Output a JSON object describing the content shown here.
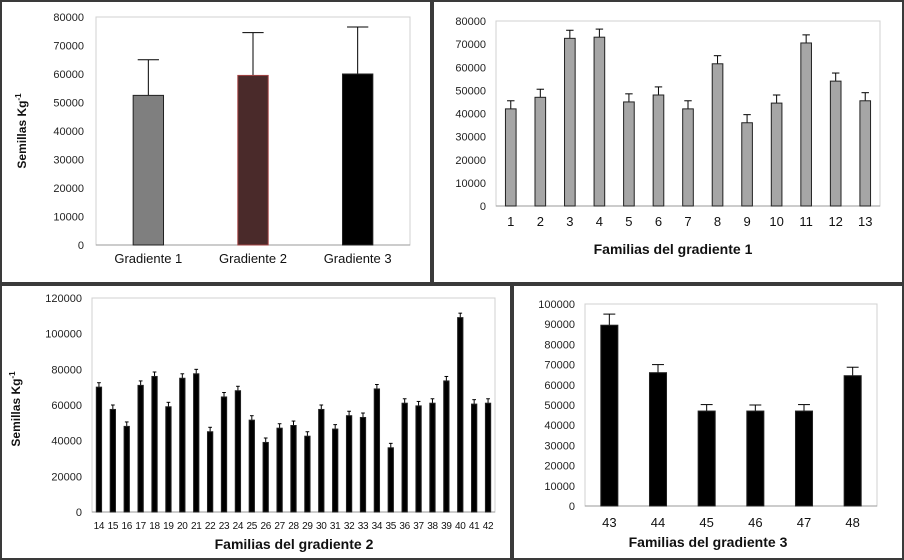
{
  "chart_data": [
    {
      "type": "bar",
      "title": "",
      "xlabel": "",
      "ylabel": "Semillas Kg",
      "ylabel_sup": "-1",
      "ylim": [
        0,
        80000
      ],
      "yticks": [
        0,
        10000,
        20000,
        30000,
        40000,
        50000,
        60000,
        70000,
        80000
      ],
      "categories": [
        "Gradiente 1",
        "Gradiente 2",
        "Gradiente 3"
      ],
      "values": [
        52500,
        59500,
        60000
      ],
      "errors": [
        12500,
        15000,
        16500
      ],
      "bar_colors": [
        "#7f7f7f",
        "#4a2a2a",
        "#000000"
      ],
      "grid": false
    },
    {
      "type": "bar",
      "title": "",
      "xlabel": "Familias del gradiente 1",
      "ylabel": "",
      "ylim": [
        0,
        80000
      ],
      "yticks": [
        0,
        10000,
        20000,
        30000,
        40000,
        50000,
        60000,
        70000,
        80000
      ],
      "categories": [
        "1",
        "2",
        "3",
        "4",
        "5",
        "6",
        "7",
        "8",
        "9",
        "10",
        "11",
        "12",
        "13"
      ],
      "values": [
        42000,
        47000,
        72500,
        73000,
        45000,
        48000,
        42000,
        61500,
        36000,
        44500,
        70500,
        54000,
        45500
      ],
      "errors": [
        3500,
        3500,
        3500,
        3500,
        3500,
        3500,
        3500,
        3500,
        3500,
        3500,
        3500,
        3500,
        3500
      ],
      "bar_colors": [
        "#a6a6a6"
      ],
      "grid": false
    },
    {
      "type": "bar",
      "title": "",
      "xlabel": "Familias del gradiente 2",
      "ylabel": "Semillas Kg",
      "ylabel_sup": "-1",
      "ylim": [
        0,
        120000
      ],
      "yticks": [
        0,
        20000,
        40000,
        60000,
        80000,
        100000,
        120000
      ],
      "categories": [
        "14",
        "15",
        "16",
        "17",
        "18",
        "19",
        "20",
        "21",
        "22",
        "23",
        "24",
        "25",
        "26",
        "27",
        "28",
        "29",
        "30",
        "31",
        "32",
        "33",
        "34",
        "35",
        "36",
        "37",
        "38",
        "39",
        "40",
        "41",
        "42"
      ],
      "values": [
        70000,
        57500,
        48000,
        71000,
        76000,
        59000,
        75000,
        77500,
        45000,
        64500,
        68000,
        51500,
        39000,
        47000,
        48500,
        42500,
        57500,
        46500,
        54000,
        53000,
        69000,
        36000,
        61000,
        59500,
        61000,
        73500,
        109000,
        60500,
        61000
      ],
      "errors": [
        2500,
        2500,
        2500,
        2500,
        2500,
        2500,
        2500,
        2500,
        2500,
        2500,
        2500,
        2500,
        2500,
        2500,
        2500,
        2500,
        2500,
        2500,
        2500,
        2500,
        2500,
        2500,
        2500,
        2500,
        2500,
        2500,
        2500,
        2500,
        2500
      ],
      "bar_colors": [
        "#000000"
      ],
      "grid": false
    },
    {
      "type": "bar",
      "title": "",
      "xlabel": "Familias del gradiente 3",
      "ylabel": "",
      "ylim": [
        0,
        100000
      ],
      "yticks": [
        0,
        10000,
        20000,
        30000,
        40000,
        50000,
        60000,
        70000,
        80000,
        90000,
        100000
      ],
      "categories": [
        "43",
        "44",
        "45",
        "46",
        "47",
        "48"
      ],
      "values": [
        89500,
        66000,
        47000,
        47000,
        47000,
        64500
      ],
      "errors": [
        5500,
        4000,
        3200,
        3000,
        3200,
        4200
      ],
      "bar_colors": [
        "#000000"
      ],
      "grid": false
    }
  ]
}
